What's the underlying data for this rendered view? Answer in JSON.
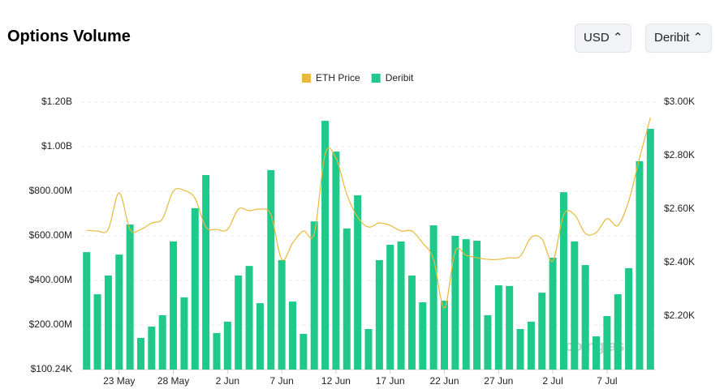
{
  "title": "Options Volume",
  "controls": {
    "currency": "USD",
    "exchange": "Deribit"
  },
  "watermark": "coinglass",
  "chart_data": {
    "type": "bar-line",
    "categories": [
      null,
      null,
      null,
      "23 May",
      null,
      null,
      null,
      null,
      "28 May",
      null,
      null,
      null,
      null,
      "2 Jun",
      null,
      null,
      null,
      null,
      "7 Jun",
      null,
      null,
      null,
      null,
      "12 Jun",
      null,
      null,
      null,
      null,
      "17 Jun",
      null,
      null,
      null,
      null,
      "22 Jun",
      null,
      null,
      null,
      null,
      "27 Jun",
      null,
      null,
      null,
      null,
      "2 Jul",
      null,
      null,
      null,
      null,
      "7 Jul",
      null,
      null,
      null,
      null
    ],
    "series": [
      {
        "name": "ETH Price",
        "type": "line",
        "axis": "y2",
        "color": "#e8b93a",
        "values": [
          2521,
          2518,
          2524,
          2661,
          2524,
          2524,
          2548,
          2564,
          2667,
          2670,
          2640,
          2533,
          2524,
          2524,
          2600,
          2594,
          2600,
          2579,
          2412,
          2473,
          2518,
          2509,
          2806,
          2791,
          2655,
          2570,
          2533,
          2548,
          2539,
          2518,
          2518,
          2473,
          2412,
          2230,
          2442,
          2427,
          2418,
          2412,
          2412,
          2418,
          2424,
          2494,
          2488,
          2406,
          2579,
          2579,
          2509,
          2512,
          2564,
          2539,
          2630,
          2791,
          2942
        ]
      },
      {
        "name": "Deribit",
        "type": "bar",
        "color": "#1ec98a",
        "values": [
          527000000,
          338000000,
          422000000,
          516000000,
          651000000,
          142000000,
          193000000,
          244000000,
          575000000,
          324000000,
          724000000,
          873000000,
          164000000,
          215000000,
          422000000,
          465000000,
          298000000,
          895000000,
          491000000,
          305000000,
          160000000,
          665000000,
          1116000000,
          978000000,
          633000000,
          782000000,
          182000000,
          491000000,
          560000000,
          575000000,
          422000000,
          302000000,
          647000000,
          309000000,
          600000000,
          585000000,
          578000000,
          244000000,
          378000000,
          375000000,
          182000000,
          215000000,
          345000000,
          502000000,
          796000000,
          575000000,
          469000000,
          149000000,
          240000000,
          338000000,
          455000000,
          935000000,
          1080000000
        ]
      }
    ],
    "ylim": [
      100240,
      1200000000
    ],
    "yticks": [
      {
        "value": 100240,
        "label": "$100.24K"
      },
      {
        "value": 200000000,
        "label": "$200.00M"
      },
      {
        "value": 400000000,
        "label": "$400.00M"
      },
      {
        "value": 600000000,
        "label": "$600.00M"
      },
      {
        "value": 800000000,
        "label": "$800.00M"
      },
      {
        "value": 1000000000,
        "label": "$1.00B"
      },
      {
        "value": 1200000000,
        "label": "$1.20B"
      }
    ],
    "y2lim": [
      2000,
      3000
    ],
    "y2ticks": [
      {
        "value": 2200,
        "label": "$2.20K"
      },
      {
        "value": 2400,
        "label": "$2.40K"
      },
      {
        "value": 2600,
        "label": "$2.60K"
      },
      {
        "value": 2800,
        "label": "$2.80K"
      },
      {
        "value": 3000,
        "label": "$3.00K"
      }
    ],
    "grid": true,
    "legend": "top"
  }
}
